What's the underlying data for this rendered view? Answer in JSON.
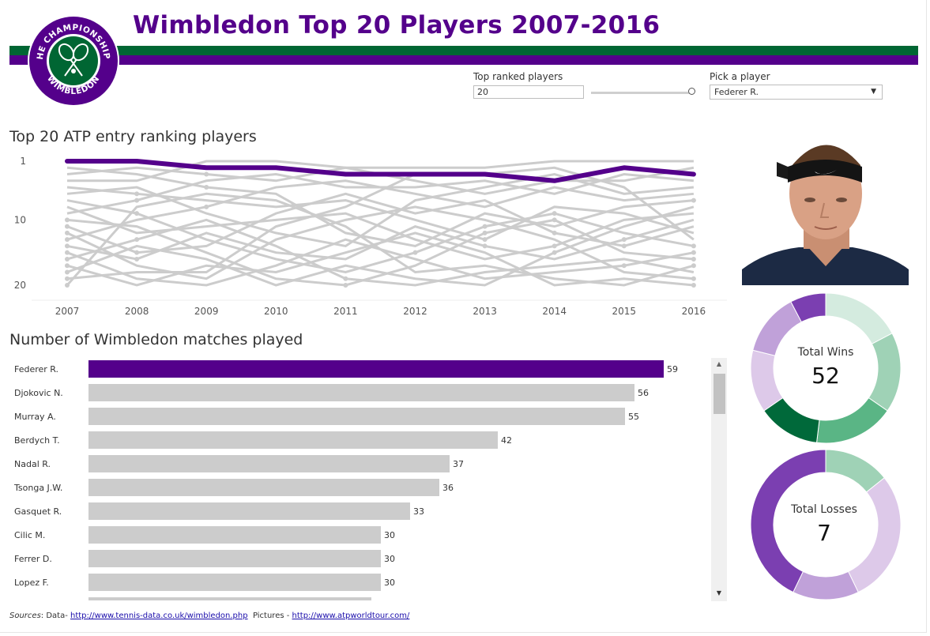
{
  "header": {
    "title": "Wimbledon Top 20 Players 2007-2016",
    "logo_top_text": "THE CHAMPIONSHIPS",
    "logo_bottom_text": "WIMBLEDON"
  },
  "colors": {
    "purple": "#54008b",
    "green": "#006633",
    "gray_line": "#cccccc"
  },
  "controls": {
    "top_ranked_label": "Top ranked players",
    "top_ranked_value": "20",
    "top_ranked_fraction": 1.0,
    "pick_player_label": "Pick a player",
    "pick_player_value": "Federer R."
  },
  "ranking_chart": {
    "title": "Top 20 ATP entry ranking players",
    "y_ticks": [
      "1",
      "10",
      "20"
    ],
    "years": [
      "2007",
      "2008",
      "2009",
      "2010",
      "2011",
      "2012",
      "2013",
      "2014",
      "2015",
      "2016"
    ],
    "highlight_player": "Federer R.",
    "highlight_ranks": [
      1,
      1,
      2,
      2,
      3,
      3,
      3,
      4,
      2,
      3
    ]
  },
  "matches_chart": {
    "title": "Number of Wimbledon matches played",
    "players": [
      {
        "name": "Federer R.",
        "matches": 59,
        "highlight": true
      },
      {
        "name": "Djokovic N.",
        "matches": 56,
        "highlight": false
      },
      {
        "name": "Murray A.",
        "matches": 55,
        "highlight": false
      },
      {
        "name": "Berdych T.",
        "matches": 42,
        "highlight": false
      },
      {
        "name": "Nadal R.",
        "matches": 37,
        "highlight": false
      },
      {
        "name": "Tsonga J.W.",
        "matches": 36,
        "highlight": false
      },
      {
        "name": "Gasquet R.",
        "matches": 33,
        "highlight": false
      },
      {
        "name": "Cilic M.",
        "matches": 30,
        "highlight": false
      },
      {
        "name": "Ferrer D.",
        "matches": 30,
        "highlight": false
      },
      {
        "name": "Lopez F.",
        "matches": 30,
        "highlight": false
      }
    ],
    "max_value": 59
  },
  "wins": {
    "label": "Total Wins",
    "value": "52",
    "segments": [
      {
        "value": 9,
        "color": "#d4ebdf"
      },
      {
        "value": 9,
        "color": "#9fd2b6"
      },
      {
        "value": 9,
        "color": "#5ab585"
      },
      {
        "value": 7,
        "color": "#00693a"
      },
      {
        "value": 7,
        "color": "#ddc9e9"
      },
      {
        "value": 7,
        "color": "#c0a1d9"
      },
      {
        "value": 4,
        "color": "#7b3fb1"
      }
    ]
  },
  "losses": {
    "label": "Total Losses",
    "value": "7",
    "segments": [
      {
        "value": 1,
        "color": "#9fd2b6"
      },
      {
        "value": 2,
        "color": "#ddc9e9"
      },
      {
        "value": 1,
        "color": "#c0a1d9"
      },
      {
        "value": 3,
        "color": "#7b3fb1"
      }
    ]
  },
  "footer": {
    "sources_label": "Sources",
    "data_label": ": Data- ",
    "data_link": "http://www.tennis-data.co.uk/wimbledon.php",
    "pictures_label": "  Pictures - ",
    "pictures_link": "http://www.atpworldtour.com/"
  }
}
